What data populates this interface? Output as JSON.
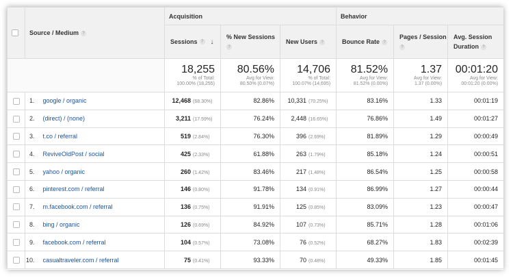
{
  "group_headers": {
    "acquisition": "Acquisition",
    "behavior": "Behavior"
  },
  "columns": {
    "source_medium": "Source / Medium",
    "sessions": "Sessions",
    "new_sessions": "% New Sessions",
    "new_users": "New Users",
    "bounce_rate": "Bounce Rate",
    "pages_session": "Pages / Session",
    "avg_duration_1": "Avg. Session",
    "avg_duration_2": "Duration"
  },
  "totals": {
    "sessions": {
      "value": "18,255",
      "sub1": "% of Total:",
      "sub2": "100.00% (18,255)"
    },
    "new_sessions": {
      "value": "80.56%",
      "sub1": "Avg for View:",
      "sub2": "80.50% (0.07%)"
    },
    "new_users": {
      "value": "14,706",
      "sub1": "% of Total:",
      "sub2": "100.07% (14,695)"
    },
    "bounce_rate": {
      "value": "81.52%",
      "sub1": "Avg for View:",
      "sub2": "81.52% (0.00%)"
    },
    "pages_session": {
      "value": "1.37",
      "sub1": "Avg for View:",
      "sub2": "1.37 (0.00%)"
    },
    "avg_duration": {
      "value": "00:01:20",
      "sub1": "Avg for View:",
      "sub2": "00:01:20 (0.00%)"
    }
  },
  "rows": [
    {
      "idx": "1.",
      "name": "google / organic",
      "sessions": "12,468",
      "sessions_pct": "(68.30%)",
      "new_sessions": "82.86%",
      "new_users": "10,331",
      "new_users_pct": "(70.25%)",
      "bounce": "83.16%",
      "pages": "1.33",
      "duration": "00:01:19"
    },
    {
      "idx": "2.",
      "name": "(direct) / (none)",
      "sessions": "3,211",
      "sessions_pct": "(17.59%)",
      "new_sessions": "76.24%",
      "new_users": "2,448",
      "new_users_pct": "(16.65%)",
      "bounce": "76.86%",
      "pages": "1.49",
      "duration": "00:01:27"
    },
    {
      "idx": "3.",
      "name": "t.co / referral",
      "sessions": "519",
      "sessions_pct": "(2.84%)",
      "new_sessions": "76.30%",
      "new_users": "396",
      "new_users_pct": "(2.69%)",
      "bounce": "81.89%",
      "pages": "1.29",
      "duration": "00:00:49"
    },
    {
      "idx": "4.",
      "name": "ReviveOldPost / social",
      "sessions": "425",
      "sessions_pct": "(2.33%)",
      "new_sessions": "61.88%",
      "new_users": "263",
      "new_users_pct": "(1.79%)",
      "bounce": "85.18%",
      "pages": "1.24",
      "duration": "00:00:51"
    },
    {
      "idx": "5.",
      "name": "yahoo / organic",
      "sessions": "260",
      "sessions_pct": "(1.42%)",
      "new_sessions": "83.46%",
      "new_users": "217",
      "new_users_pct": "(1.48%)",
      "bounce": "86.54%",
      "pages": "1.25",
      "duration": "00:00:58"
    },
    {
      "idx": "6.",
      "name": "pinterest.com / referral",
      "sessions": "146",
      "sessions_pct": "(0.80%)",
      "new_sessions": "91.78%",
      "new_users": "134",
      "new_users_pct": "(0.91%)",
      "bounce": "86.99%",
      "pages": "1.27",
      "duration": "00:00:44"
    },
    {
      "idx": "7.",
      "name": "m.facebook.com / referral",
      "sessions": "136",
      "sessions_pct": "(0.75%)",
      "new_sessions": "91.91%",
      "new_users": "125",
      "new_users_pct": "(0.85%)",
      "bounce": "83.09%",
      "pages": "1.23",
      "duration": "00:00:47"
    },
    {
      "idx": "8.",
      "name": "bing / organic",
      "sessions": "126",
      "sessions_pct": "(0.69%)",
      "new_sessions": "84.92%",
      "new_users": "107",
      "new_users_pct": "(0.73%)",
      "bounce": "85.71%",
      "pages": "1.28",
      "duration": "00:01:06"
    },
    {
      "idx": "9.",
      "name": "facebook.com / referral",
      "sessions": "104",
      "sessions_pct": "(0.57%)",
      "new_sessions": "73.08%",
      "new_users": "76",
      "new_users_pct": "(0.52%)",
      "bounce": "68.27%",
      "pages": "1.83",
      "duration": "00:02:39"
    },
    {
      "idx": "10.",
      "name": "casualtraveler.com / referral",
      "sessions": "75",
      "sessions_pct": "(0.41%)",
      "new_sessions": "93.33%",
      "new_users": "70",
      "new_users_pct": "(0.48%)",
      "bounce": "49.33%",
      "pages": "1.85",
      "duration": "00:01:45"
    }
  ],
  "icons": {
    "help": "help-icon",
    "sort": "sort-down-icon"
  },
  "colors": {
    "link": "#1a55a3",
    "header_bg": "#f1f1f1"
  }
}
